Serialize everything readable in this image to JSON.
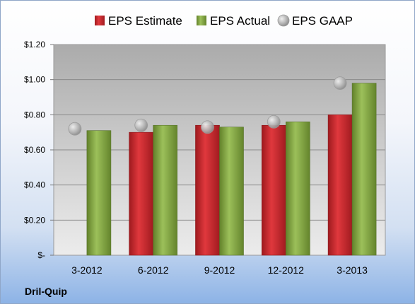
{
  "chart_data": {
    "type": "bar",
    "categories": [
      "3-2012",
      "6-2012",
      "9-2012",
      "12-2012",
      "3-2013"
    ],
    "series": [
      {
        "name": "EPS Estimate",
        "kind": "bar",
        "color": "#c8262c",
        "values": [
          null,
          0.7,
          0.74,
          0.74,
          0.8
        ]
      },
      {
        "name": "EPS Actual",
        "kind": "bar",
        "color": "#87a845",
        "values": [
          0.71,
          0.74,
          0.73,
          0.76,
          0.98
        ]
      },
      {
        "name": "EPS GAAP",
        "kind": "marker",
        "color": "#b8b8b8",
        "values": [
          0.72,
          0.74,
          0.73,
          0.76,
          0.98
        ]
      }
    ],
    "yticks": [
      "$-",
      "$0.20",
      "$0.40",
      "$0.60",
      "$0.80",
      "$1.00",
      "$1.20"
    ],
    "ylim": [
      0,
      1.2
    ],
    "grid": true,
    "legend_position": "top"
  },
  "footer": {
    "company": "Dril-Quip"
  }
}
